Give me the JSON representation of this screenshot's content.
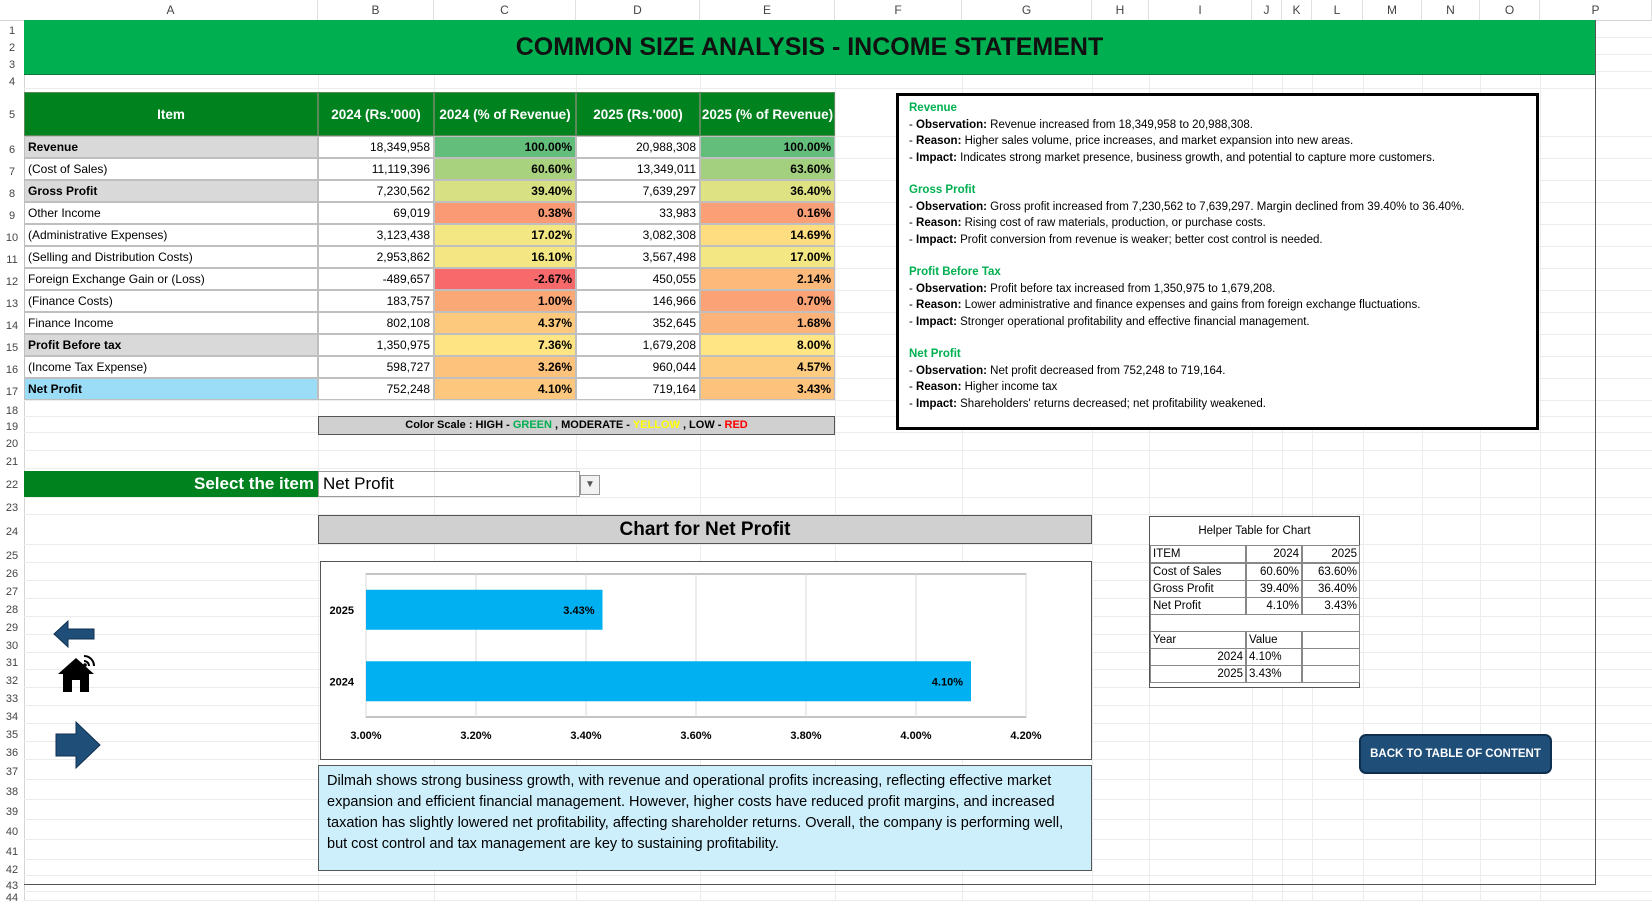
{
  "columns": [
    "A",
    "B",
    "C",
    "D",
    "E",
    "F",
    "G",
    "H",
    "I",
    "J",
    "K",
    "L",
    "M",
    "N",
    "O",
    "P"
  ],
  "rows": [
    "1",
    "2",
    "3",
    "4",
    "5",
    "6",
    "7",
    "8",
    "9",
    "10",
    "11",
    "12",
    "13",
    "14",
    "15",
    "16",
    "17",
    "18",
    "19",
    "20",
    "21",
    "22",
    "23",
    "24",
    "25",
    "26",
    "27",
    "28",
    "29",
    "30",
    "31",
    "32",
    "33",
    "34",
    "35",
    "36",
    "37",
    "38",
    "39",
    "40",
    "41",
    "42",
    "43",
    "44"
  ],
  "title": "COMMON SIZE ANALYSIS - INCOME STATEMENT",
  "table": {
    "headers": [
      "Item",
      "2024 (Rs.'000)",
      "2024 (% of Revenue)",
      "2025 (Rs.'000)",
      "2025 (% of Revenue)"
    ],
    "rows": [
      {
        "item": "Revenue",
        "v2024": "18,349,958",
        "p2024": "100.00%",
        "v2025": "20,988,308",
        "p2025": "100.00%",
        "bold": true,
        "bg": "#d9d9d9",
        "c1": "#63be7b",
        "c2": "#63be7b"
      },
      {
        "item": "(Cost of Sales)",
        "v2024": "11,119,396",
        "p2024": "60.60%",
        "v2025": "13,349,011",
        "p2025": "63.60%",
        "bold": false,
        "bg": "#ffffff",
        "c1": "#a9d27f",
        "c2": "#a3d07e"
      },
      {
        "item": "Gross Profit",
        "v2024": "7,230,562",
        "p2024": "39.40%",
        "v2025": "7,639,297",
        "p2025": "36.40%",
        "bold": true,
        "bg": "#d9d9d9",
        "c1": "#d7e082",
        "c2": "#dee283"
      },
      {
        "item": "Other Income",
        "v2024": "69,019",
        "p2024": "0.38%",
        "v2025": "33,983",
        "p2025": "0.16%",
        "bold": false,
        "bg": "#ffffff",
        "c1": "#f99a74",
        "c2": "#fba076"
      },
      {
        "item": "(Administrative Expenses)",
        "v2024": "3,123,438",
        "p2024": "17.02%",
        "v2025": "3,082,308",
        "p2025": "14.69%",
        "bold": false,
        "bg": "#ffffff",
        "c1": "#f3e783",
        "c2": "#fedd81"
      },
      {
        "item": "(Selling and Distribution Costs)",
        "v2024": "2,953,862",
        "p2024": "16.10%",
        "v2025": "3,567,498",
        "p2025": "17.00%",
        "bold": false,
        "bg": "#ffffff",
        "c1": "#f4e783",
        "c2": "#f3e783"
      },
      {
        "item": "Foreign Exchange Gain or (Loss)",
        "v2024": "-489,657",
        "p2024": "-2.67%",
        "v2025": "450,055",
        "p2025": "2.14%",
        "bold": false,
        "bg": "#ffffff",
        "c1": "#f8696b",
        "c2": "#fdb979"
      },
      {
        "item": "(Finance Costs)",
        "v2024": "183,757",
        "p2024": "1.00%",
        "v2025": "146,966",
        "p2025": "0.70%",
        "bold": false,
        "bg": "#ffffff",
        "c1": "#fba877",
        "c2": "#fba376"
      },
      {
        "item": "Finance Income",
        "v2024": "802,108",
        "p2024": "4.37%",
        "v2025": "352,645",
        "p2025": "1.68%",
        "bold": false,
        "bg": "#ffffff",
        "c1": "#fdca7d",
        "c2": "#fcb379"
      },
      {
        "item": "Profit Before tax",
        "v2024": "1,350,975",
        "p2024": "7.36%",
        "v2025": "1,679,208",
        "p2025": "8.00%",
        "bold": true,
        "bg": "#d9d9d9",
        "c1": "#ffe483",
        "c2": "#ffe583"
      },
      {
        "item": "(Income Tax Expense)",
        "v2024": "598,727",
        "p2024": "3.26%",
        "v2025": "960,044",
        "p2025": "4.57%",
        "bold": false,
        "bg": "#ffffff",
        "c1": "#fdc27b",
        "c2": "#fdcc7e"
      },
      {
        "item": "Net Profit",
        "v2024": "752,248",
        "p2024": "4.10%",
        "v2025": "719,164",
        "p2025": "3.43%",
        "bold": true,
        "bg": "#9bdcf7",
        "c1": "#fdc87d",
        "c2": "#fdc37c"
      }
    ]
  },
  "color_scale": {
    "prefix": "Color Scale : HIGH - ",
    "green": "GREEN",
    "mid": " , MODERATE - ",
    "yellow": "YELLOW",
    "sep": " , LOW - ",
    "red": "RED",
    "green_color": "#00b050",
    "yellow_color": "#ffff00",
    "red_color": "#ff0000"
  },
  "notes": [
    {
      "heading": "Revenue",
      "lines": [
        {
          "label": "Observation:",
          "text": " Revenue increased from 18,349,958 to 20,988,308."
        },
        {
          "label": "Reason:",
          "text": " Higher sales volume, price increases, and market expansion into new areas."
        },
        {
          "label": "Impact:",
          "text": " Indicates strong market presence, business growth, and potential to capture more customers."
        }
      ]
    },
    {
      "heading": "Gross Profit",
      "lines": [
        {
          "label": "Observation:",
          "text": " Gross profit increased from 7,230,562 to 7,639,297. Margin declined from 39.40% to 36.40%."
        },
        {
          "label": "Reason:",
          "text": " Rising cost of raw materials, production, or purchase costs."
        },
        {
          "label": "Impact:",
          "text": " Profit conversion from revenue is weaker; better cost control is needed."
        }
      ]
    },
    {
      "heading": "Profit Before Tax",
      "lines": [
        {
          "label": "Observation:",
          "text": " Profit before tax increased from 1,350,975 to 1,679,208."
        },
        {
          "label": "Reason:",
          "text": " Lower administrative and finance expenses and gains from foreign exchange fluctuations."
        },
        {
          "label": "Impact:",
          "text": " Stronger operational profitability and effective financial management."
        }
      ]
    },
    {
      "heading": "Net Profit",
      "lines": [
        {
          "label": "Observation:",
          "text": " Net profit decreased from 752,248 to 719,164."
        },
        {
          "label": "Reason:",
          "text": " Higher income tax"
        },
        {
          "label": "Impact:",
          "text": " Shareholders' returns decreased; net profitability weakened."
        }
      ]
    }
  ],
  "selector": {
    "label": "Select the item",
    "value": "Net Profit"
  },
  "chart_title": "Chart for Net Profit",
  "chart_data": {
    "type": "bar",
    "orientation": "horizontal",
    "categories": [
      "2025",
      "2024"
    ],
    "values": [
      3.43,
      4.1
    ],
    "value_labels": [
      "3.43%",
      "4.10%"
    ],
    "xlim": [
      3.0,
      4.2
    ],
    "x_ticks": [
      "3.00%",
      "3.20%",
      "3.40%",
      "3.60%",
      "3.80%",
      "4.00%",
      "4.20%"
    ],
    "grid": true,
    "bar_color": "#00b0f0"
  },
  "summary": "Dilmah shows strong business growth, with revenue and operational profits increasing, reflecting effective market expansion and efficient financial management. However, higher costs have reduced profit margins, and increased taxation has slightly lowered net profitability, affecting shareholder returns. Overall, the company is performing well, but cost control and tax management are key to sustaining profitability.",
  "helper": {
    "title": "Helper Table for Chart",
    "header": [
      "ITEM",
      "2024",
      "2025"
    ],
    "rows": [
      [
        "Cost of Sales",
        "60.60%",
        "63.60%"
      ],
      [
        "Gross Profit",
        "39.40%",
        "36.40%"
      ],
      [
        "Net Profit",
        "4.10%",
        "3.43%"
      ]
    ],
    "header2": [
      "Year",
      "Value"
    ],
    "rows2": [
      [
        "2024",
        "4.10%"
      ],
      [
        "2025",
        "3.43%"
      ]
    ]
  },
  "back_button": "BACK TO TABLE OF CONTENT",
  "nav_icons": [
    "left-arrow-icon",
    "home-icon",
    "right-arrow-icon"
  ]
}
